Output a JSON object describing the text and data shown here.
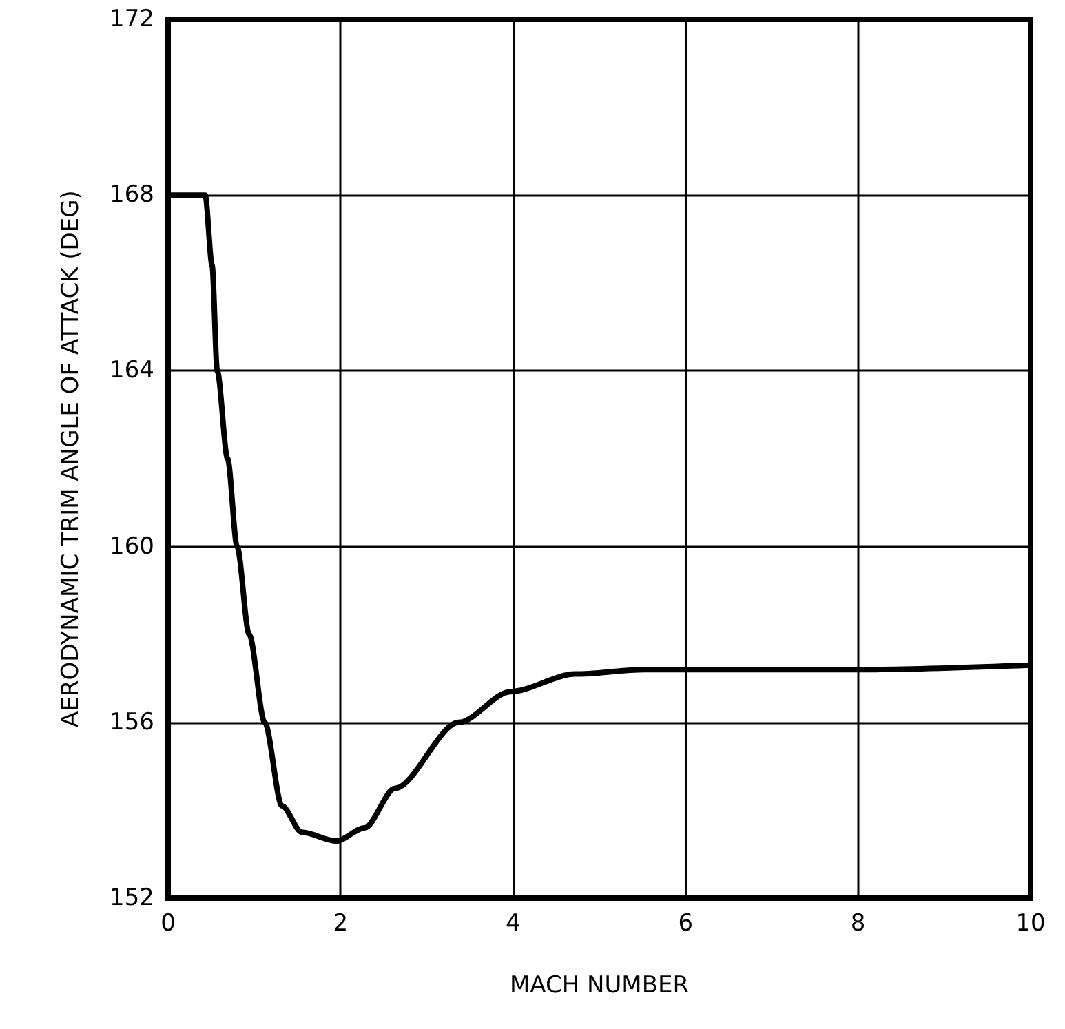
{
  "chart_data": {
    "type": "line",
    "xlabel": "MACH NUMBER",
    "ylabel": "AERODYNAMIC TRIM ANGLE OF ATTACK (DEG)",
    "x": [
      0,
      0.43,
      0.51,
      0.57,
      0.69,
      0.8,
      0.94,
      1.12,
      1.32,
      1.55,
      1.95,
      2.28,
      2.63,
      3.37,
      3.97,
      4.72,
      5.52,
      6.04,
      8.07,
      10
    ],
    "series": [
      {
        "color": "#000000",
        "values": [
          168,
          168,
          166.4,
          164,
          162,
          160,
          158,
          156,
          154.1,
          153.5,
          153.3,
          153.6,
          154.5,
          156,
          156.7,
          157.1,
          157.2,
          157.2,
          157.2,
          157.3
        ]
      }
    ],
    "xlim": [
      0,
      10
    ],
    "xticks": [
      0,
      2,
      4,
      6,
      8,
      10
    ],
    "ylim": [
      152,
      172
    ],
    "yticks": [
      152,
      156,
      160,
      164,
      168,
      172
    ],
    "grid": true,
    "marker": "none",
    "line_style": "solid"
  }
}
